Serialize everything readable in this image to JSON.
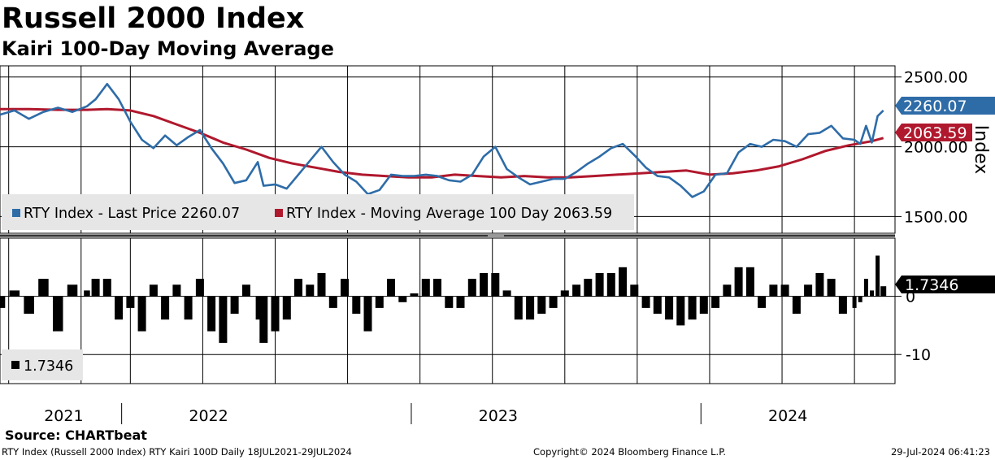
{
  "title": "Russell 2000 Index",
  "subtitle": "Kairi 100-Day Moving Average",
  "source": "Source: CHARTbeat",
  "footer": {
    "left": "RTY Index (Russell 2000 Index) RTY Kairi 100D  Daily 18JUL2021-29JUL2024",
    "center": "Copyright© 2024 Bloomberg Finance L.P.",
    "right": "29-Jul-2024 06:41:23"
  },
  "colors": {
    "price": "#2e6ca8",
    "ma": "#b0182d",
    "kairi": "#000000",
    "legend_bg": "#e6e6e6"
  },
  "chart_data": [
    {
      "type": "line",
      "title": "Russell 2000 Index",
      "ylabel": "Index",
      "ylim": [
        1380,
        2580
      ],
      "yticks": [
        1500,
        2000,
        2500
      ],
      "ytick_labels": [
        "1500.00",
        "2000.00",
        "2500.00"
      ],
      "grid": true,
      "legend_position": "bottom-left",
      "x_range": [
        2021.55,
        2024.64
      ],
      "x_divisions": [
        2021.58,
        2021.83,
        2022.0,
        2022.25,
        2022.5,
        2022.75,
        2023.0,
        2023.25,
        2023.5,
        2023.75,
        2024.0,
        2024.25,
        2024.5
      ],
      "series": [
        {
          "name": "RTY Index - Last Price",
          "legend": "RTY Index - Last Price 2260.07",
          "last_label": "2260.07",
          "x": [
            2021.55,
            2021.6,
            2021.65,
            2021.7,
            2021.75,
            2021.8,
            2021.85,
            2021.88,
            2021.92,
            2021.96,
            2022.0,
            2022.04,
            2022.08,
            2022.12,
            2022.16,
            2022.2,
            2022.24,
            2022.28,
            2022.32,
            2022.36,
            2022.4,
            2022.44,
            2022.46,
            2022.5,
            2022.54,
            2022.58,
            2022.62,
            2022.66,
            2022.7,
            2022.74,
            2022.78,
            2022.82,
            2022.86,
            2022.9,
            2022.94,
            2022.98,
            2023.02,
            2023.06,
            2023.1,
            2023.14,
            2023.18,
            2023.22,
            2023.26,
            2023.3,
            2023.34,
            2023.38,
            2023.42,
            2023.46,
            2023.5,
            2023.54,
            2023.58,
            2023.62,
            2023.66,
            2023.7,
            2023.74,
            2023.78,
            2023.82,
            2023.86,
            2023.9,
            2023.94,
            2023.98,
            2024.02,
            2024.06,
            2024.1,
            2024.14,
            2024.18,
            2024.22,
            2024.26,
            2024.3,
            2024.34,
            2024.38,
            2024.42,
            2024.46,
            2024.5,
            2024.52,
            2024.54,
            2024.56,
            2024.58,
            2024.6
          ],
          "values": [
            2230,
            2260,
            2200,
            2250,
            2280,
            2250,
            2290,
            2340,
            2450,
            2340,
            2180,
            2050,
            1990,
            2080,
            2010,
            2070,
            2120,
            1990,
            1880,
            1740,
            1760,
            1890,
            1720,
            1730,
            1700,
            1800,
            1900,
            2000,
            1890,
            1800,
            1750,
            1660,
            1690,
            1800,
            1790,
            1790,
            1800,
            1790,
            1760,
            1750,
            1800,
            1930,
            2000,
            1840,
            1780,
            1730,
            1750,
            1770,
            1770,
            1820,
            1880,
            1930,
            1990,
            2020,
            1940,
            1850,
            1790,
            1780,
            1720,
            1640,
            1680,
            1800,
            1810,
            1960,
            2020,
            2000,
            2050,
            2040,
            2000,
            2090,
            2100,
            2150,
            2060,
            2050,
            2020,
            2150,
            2030,
            2220,
            2260
          ]
        },
        {
          "name": "RTY Index - Moving Average 100 Day",
          "legend": "RTY Index - Moving Average 100 Day 2063.59",
          "last_label": "2063.59",
          "x": [
            2021.55,
            2021.65,
            2021.75,
            2021.85,
            2021.92,
            2022.0,
            2022.08,
            2022.16,
            2022.24,
            2022.32,
            2022.4,
            2022.48,
            2022.56,
            2022.64,
            2022.72,
            2022.8,
            2022.88,
            2022.96,
            2023.04,
            2023.12,
            2023.2,
            2023.28,
            2023.36,
            2023.44,
            2023.52,
            2023.6,
            2023.68,
            2023.76,
            2023.84,
            2023.92,
            2024.0,
            2024.08,
            2024.16,
            2024.24,
            2024.32,
            2024.4,
            2024.48,
            2024.56,
            2024.6
          ],
          "values": [
            2270,
            2270,
            2265,
            2265,
            2270,
            2260,
            2220,
            2160,
            2100,
            2030,
            1980,
            1920,
            1880,
            1850,
            1820,
            1800,
            1790,
            1780,
            1780,
            1800,
            1790,
            1780,
            1790,
            1780,
            1780,
            1790,
            1800,
            1810,
            1820,
            1830,
            1800,
            1810,
            1830,
            1860,
            1910,
            1970,
            2010,
            2040,
            2063
          ]
        }
      ]
    },
    {
      "type": "bar",
      "title": "RTY Kairi 100D",
      "ylim": [
        -15,
        10
      ],
      "yticks": [
        0,
        -10
      ],
      "ytick_labels": [
        "0",
        "-10"
      ],
      "grid": true,
      "legend_position": "bottom-left",
      "x_range": [
        2021.55,
        2024.64
      ],
      "series": [
        {
          "name": "RTY Kairi 100D",
          "legend": "1.7346",
          "last_label": "1.7346",
          "x": [
            2021.55,
            2021.6,
            2021.65,
            2021.7,
            2021.75,
            2021.8,
            2021.85,
            2021.88,
            2021.92,
            2021.96,
            2022.0,
            2022.04,
            2022.08,
            2022.12,
            2022.16,
            2022.2,
            2022.24,
            2022.28,
            2022.32,
            2022.36,
            2022.4,
            2022.44,
            2022.46,
            2022.5,
            2022.54,
            2022.58,
            2022.62,
            2022.66,
            2022.7,
            2022.74,
            2022.78,
            2022.82,
            2022.86,
            2022.9,
            2022.94,
            2022.98,
            2023.02,
            2023.06,
            2023.1,
            2023.14,
            2023.18,
            2023.22,
            2023.26,
            2023.3,
            2023.34,
            2023.38,
            2023.42,
            2023.46,
            2023.5,
            2023.54,
            2023.58,
            2023.62,
            2023.66,
            2023.7,
            2023.74,
            2023.78,
            2023.82,
            2023.86,
            2023.9,
            2023.94,
            2023.98,
            2024.02,
            2024.06,
            2024.1,
            2024.14,
            2024.18,
            2024.22,
            2024.26,
            2024.3,
            2024.34,
            2024.38,
            2024.42,
            2024.46,
            2024.5,
            2024.52,
            2024.54,
            2024.56,
            2024.58,
            2024.6
          ],
          "values": [
            -2,
            1,
            -3,
            3,
            -6,
            2,
            1,
            3,
            3,
            -4,
            -2,
            -6,
            2,
            -4,
            2,
            -4,
            3,
            -6,
            -8,
            -3,
            2,
            -4,
            -8,
            -6,
            -4,
            3,
            2,
            4,
            -2,
            3,
            -3,
            -6,
            -2,
            3,
            -1,
            0.5,
            3,
            3,
            -2,
            -2,
            3,
            4,
            4,
            1,
            -4,
            -4,
            -3,
            -2,
            1,
            2,
            3,
            4,
            4,
            5,
            2,
            -2,
            -3,
            -4,
            -5,
            -4,
            -3,
            -2,
            2,
            5,
            5,
            -2,
            2,
            2,
            -3,
            2,
            4,
            3,
            -3,
            -2,
            -1,
            3,
            1,
            7,
            1.7346
          ]
        }
      ]
    }
  ],
  "x_axis": {
    "year_labels": [
      {
        "x": 2021.77,
        "label": "2021"
      },
      {
        "x": 2022.27,
        "label": "2022"
      },
      {
        "x": 2023.27,
        "label": "2023"
      },
      {
        "x": 2024.27,
        "label": "2024"
      }
    ],
    "year_separators": [
      2021.97,
      2022.97,
      2023.97
    ]
  }
}
